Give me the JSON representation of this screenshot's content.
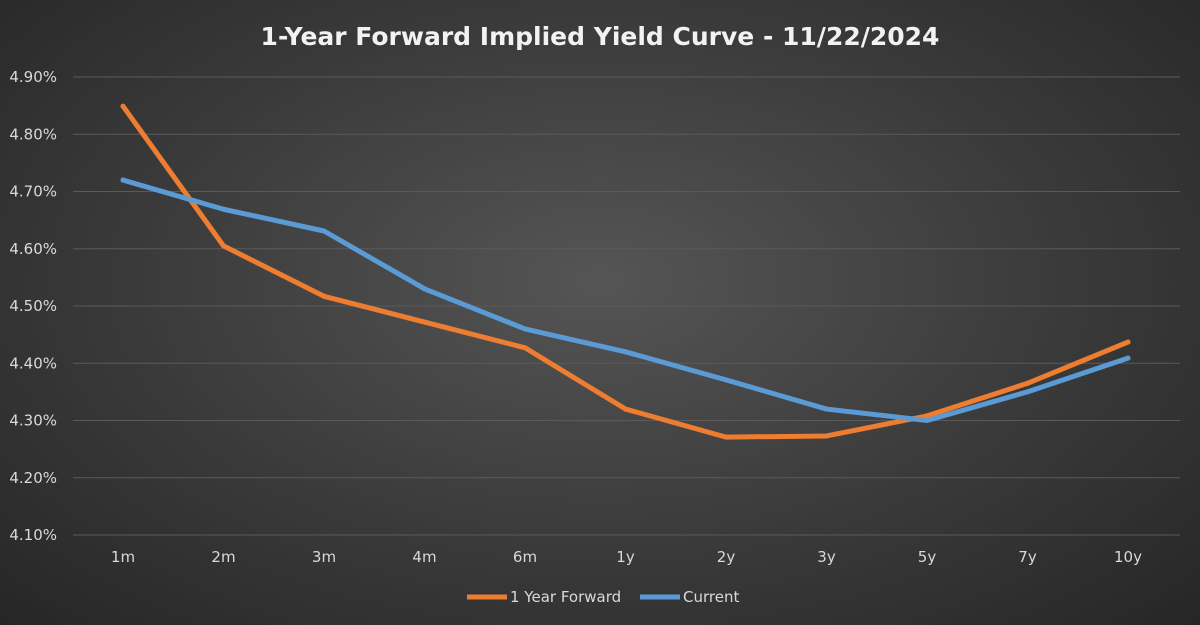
{
  "chart_data": {
    "type": "line",
    "title": "1-Year Forward Implied Yield Curve - 11/22/2024",
    "xlabel": "",
    "ylabel": "",
    "categories": [
      "1m",
      "2m",
      "3m",
      "4m",
      "6m",
      "1y",
      "2y",
      "3y",
      "5y",
      "7y",
      "10y"
    ],
    "ylim": [
      4.1,
      4.9
    ],
    "y_ticks": [
      "4.10%",
      "4.20%",
      "4.30%",
      "4.40%",
      "4.50%",
      "4.60%",
      "4.70%",
      "4.80%",
      "4.90%"
    ],
    "y_unit": "%",
    "grid": true,
    "legend_position": "bottom",
    "series": [
      {
        "name": "1 Year Forward",
        "color": "#ed7d31",
        "values": [
          4.849,
          4.605,
          4.517,
          4.472,
          4.427,
          4.32,
          4.271,
          4.273,
          4.308,
          4.365,
          4.437
        ]
      },
      {
        "name": "Current",
        "color": "#5b9bd5",
        "values": [
          4.72,
          4.669,
          4.631,
          4.53,
          4.46,
          4.42,
          4.371,
          4.32,
          4.3,
          4.35,
          4.409
        ]
      }
    ]
  }
}
